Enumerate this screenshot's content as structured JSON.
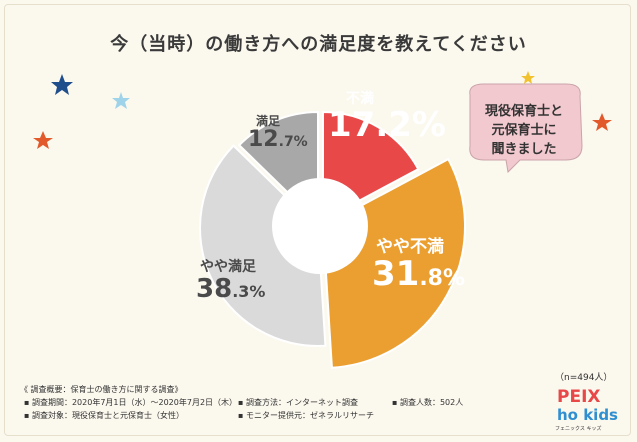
{
  "title": "今（当時）の働き方への満足度を教えてください",
  "chart_data": {
    "type": "pie",
    "title": "今（当時）の働き方への満足度を教えてください",
    "slices": [
      {
        "label": "不満",
        "value": 17.2,
        "int": "17",
        "dec": ".2%",
        "color": "#e84848"
      },
      {
        "label": "やや不満",
        "value": 31.8,
        "int": "31",
        "dec": ".8%",
        "color": "#eb9f30"
      },
      {
        "label": "やや満足",
        "value": 38.3,
        "int": "38",
        "dec": ".3%",
        "color": "#dadada"
      },
      {
        "label": "満足",
        "value": 12.7,
        "int": "12",
        "dec": ".7%",
        "color": "#a8a8a8"
      }
    ],
    "donut": true
  },
  "note": {
    "line1": "現役保育士と",
    "line2": "元保育士に",
    "line3": "聞きました"
  },
  "sample": "（n=494人）",
  "footer": {
    "heading": "《 調査概要：保育士の働き方に関する調査》",
    "period": "▪ 調査期間：2020年7月1日（水）〜2020年7月2日（木）",
    "method": "▪ 調査方法：インターネット調査",
    "count": "▪ 調査人数：502人",
    "target": "▪ 調査対象：現役保育士と元保育士（女性）",
    "provider": "▪ モニター提供元：ゼネラルリサーチ"
  },
  "logo": {
    "top": "PEIX",
    "bottom": "ho kids",
    "sub": "フェニックス キッズ"
  },
  "colors": {
    "text_red": "#e84848",
    "text_white": "#ffffff",
    "text_dark": "#4a4a4a",
    "note_bg": "#f2c9cf"
  },
  "icons": [
    "star-icon",
    "speech-bubble-icon"
  ]
}
